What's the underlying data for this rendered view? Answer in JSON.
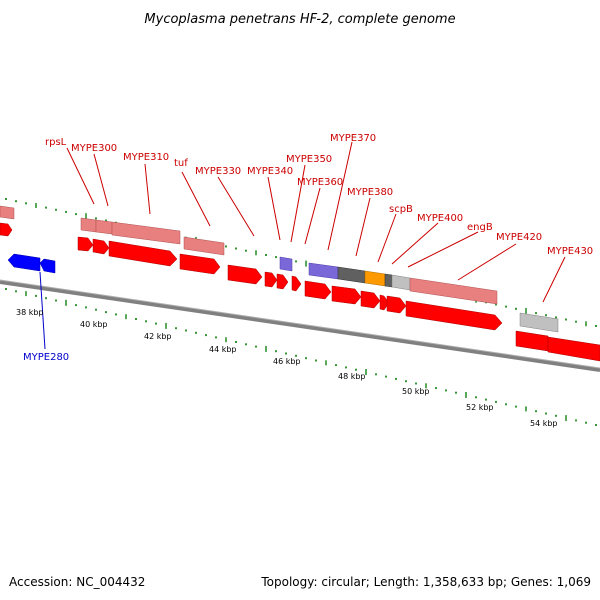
{
  "title": "Mycoplasma penetrans HF-2, complete genome",
  "footer": {
    "accession": "Accession: NC_004432",
    "summary": "Topology: circular; Length: 1,358,633 bp; Genes: 1,069"
  },
  "colors": {
    "forward_cds": "#ff0000",
    "forward_cds_dark": "#cc0000",
    "reverse_cds": "#0000ff",
    "reverse_cds_dark": "#0000aa",
    "feature_light_red": "#e98080",
    "feature_purple": "#7b68d8",
    "feature_dark_gray": "#606060",
    "feature_orange": "#ff9900",
    "feature_light_gray": "#c0c0c0",
    "backbone": "#808080",
    "gc_ticks": "#228b22",
    "label_red": "#cc0000",
    "label_blue": "#0000cc"
  },
  "backbone_label": "genome backbone",
  "scale": {
    "labels": [
      "38 kbp",
      "40 kbp",
      "42 kbp",
      "44 kbp",
      "46 kbp",
      "48 kbp",
      "50 kbp",
      "52 kbp",
      "54 kbp"
    ]
  },
  "gene_labels": [
    {
      "text": "rpsL",
      "strand": "forward"
    },
    {
      "text": "MYPE300",
      "strand": "forward"
    },
    {
      "text": "MYPE310",
      "strand": "forward"
    },
    {
      "text": "tuf",
      "strand": "forward"
    },
    {
      "text": "MYPE330",
      "strand": "forward"
    },
    {
      "text": "MYPE340",
      "strand": "forward"
    },
    {
      "text": "MYPE350",
      "strand": "forward"
    },
    {
      "text": "MYPE360",
      "strand": "forward"
    },
    {
      "text": "MYPE370",
      "strand": "forward"
    },
    {
      "text": "MYPE380",
      "strand": "forward"
    },
    {
      "text": "scpB",
      "strand": "forward"
    },
    {
      "text": "MYPE400",
      "strand": "forward"
    },
    {
      "text": "engB",
      "strand": "forward"
    },
    {
      "text": "MYPE420",
      "strand": "forward"
    },
    {
      "text": "MYPE430",
      "strand": "forward"
    },
    {
      "text": "MYPE280",
      "strand": "reverse"
    }
  ]
}
